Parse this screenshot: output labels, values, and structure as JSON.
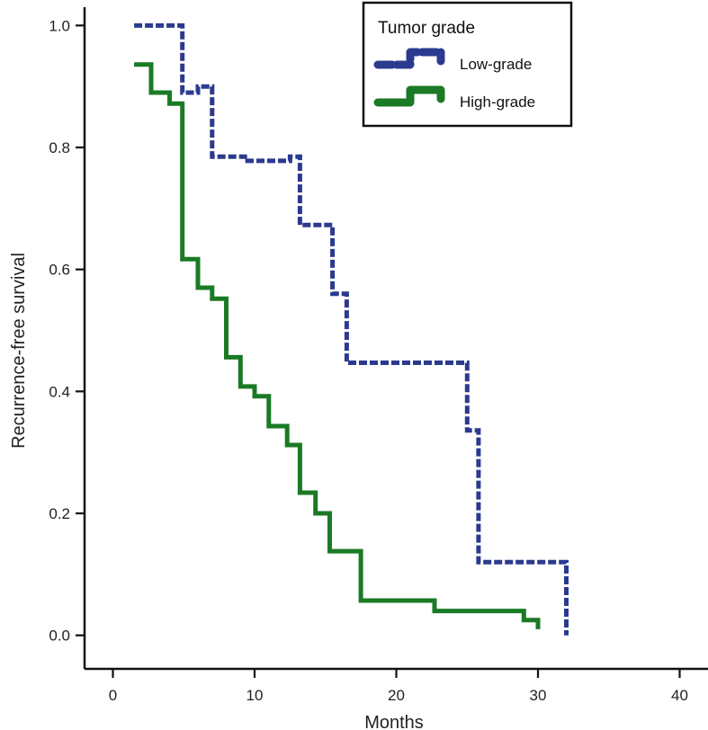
{
  "chart_data": {
    "type": "line",
    "subtype": "kaplan-meier step",
    "xlabel": "Months",
    "ylabel": "Recurrence-free survival",
    "xlim": [
      -2,
      42
    ],
    "ylim": [
      -0.055,
      1.03
    ],
    "xticks": [
      0,
      10,
      20,
      30,
      40
    ],
    "yticks": [
      0.0,
      0.2,
      0.4,
      0.6,
      0.8,
      1.0
    ],
    "xtick_labels": [
      "0",
      "10",
      "20",
      "30",
      "40"
    ],
    "ytick_labels": [
      "0.0",
      "0.2",
      "0.4",
      "0.6",
      "0.8",
      "1.0"
    ],
    "legend": {
      "title": "Tumor grade",
      "position": "top-right",
      "entries": [
        "Low-grade",
        "High-grade"
      ]
    },
    "series": [
      {
        "name": "Low-grade",
        "color": "#2b3a8f",
        "style": "dashed",
        "points": [
          [
            1.5,
            1.0
          ],
          [
            4.9,
            1.0
          ],
          [
            4.9,
            0.89
          ],
          [
            6.0,
            0.89
          ],
          [
            6.0,
            0.9
          ],
          [
            7.0,
            0.9
          ],
          [
            7.0,
            0.785
          ],
          [
            9.5,
            0.785
          ],
          [
            9.5,
            0.778
          ],
          [
            12.5,
            0.778
          ],
          [
            12.5,
            0.785
          ],
          [
            13.2,
            0.785
          ],
          [
            13.2,
            0.673
          ],
          [
            15.5,
            0.673
          ],
          [
            15.5,
            0.56
          ],
          [
            16.5,
            0.56
          ],
          [
            16.5,
            0.447
          ],
          [
            25.0,
            0.447
          ],
          [
            25.0,
            0.336
          ],
          [
            25.8,
            0.336
          ],
          [
            25.8,
            0.12
          ],
          [
            32.0,
            0.12
          ],
          [
            32.0,
            0.0
          ]
        ]
      },
      {
        "name": "High-grade",
        "color": "#1a7a25",
        "style": "solid",
        "points": [
          [
            1.5,
            0.936
          ],
          [
            2.7,
            0.936
          ],
          [
            2.7,
            0.89
          ],
          [
            4.0,
            0.89
          ],
          [
            4.0,
            0.872
          ],
          [
            4.9,
            0.872
          ],
          [
            4.9,
            0.617
          ],
          [
            6.0,
            0.617
          ],
          [
            6.0,
            0.57
          ],
          [
            7.0,
            0.57
          ],
          [
            7.0,
            0.552
          ],
          [
            8.0,
            0.552
          ],
          [
            8.0,
            0.456
          ],
          [
            9.0,
            0.456
          ],
          [
            9.0,
            0.408
          ],
          [
            10.0,
            0.408
          ],
          [
            10.0,
            0.392
          ],
          [
            11.0,
            0.392
          ],
          [
            11.0,
            0.343
          ],
          [
            12.3,
            0.343
          ],
          [
            12.3,
            0.312
          ],
          [
            13.2,
            0.312
          ],
          [
            13.2,
            0.234
          ],
          [
            14.3,
            0.234
          ],
          [
            14.3,
            0.2
          ],
          [
            15.3,
            0.2
          ],
          [
            15.3,
            0.138
          ],
          [
            17.5,
            0.138
          ],
          [
            17.5,
            0.057
          ],
          [
            22.7,
            0.057
          ],
          [
            22.7,
            0.04
          ],
          [
            29.0,
            0.04
          ],
          [
            29.0,
            0.025
          ],
          [
            30.0,
            0.025
          ],
          [
            30.0,
            0.01
          ]
        ]
      }
    ]
  }
}
